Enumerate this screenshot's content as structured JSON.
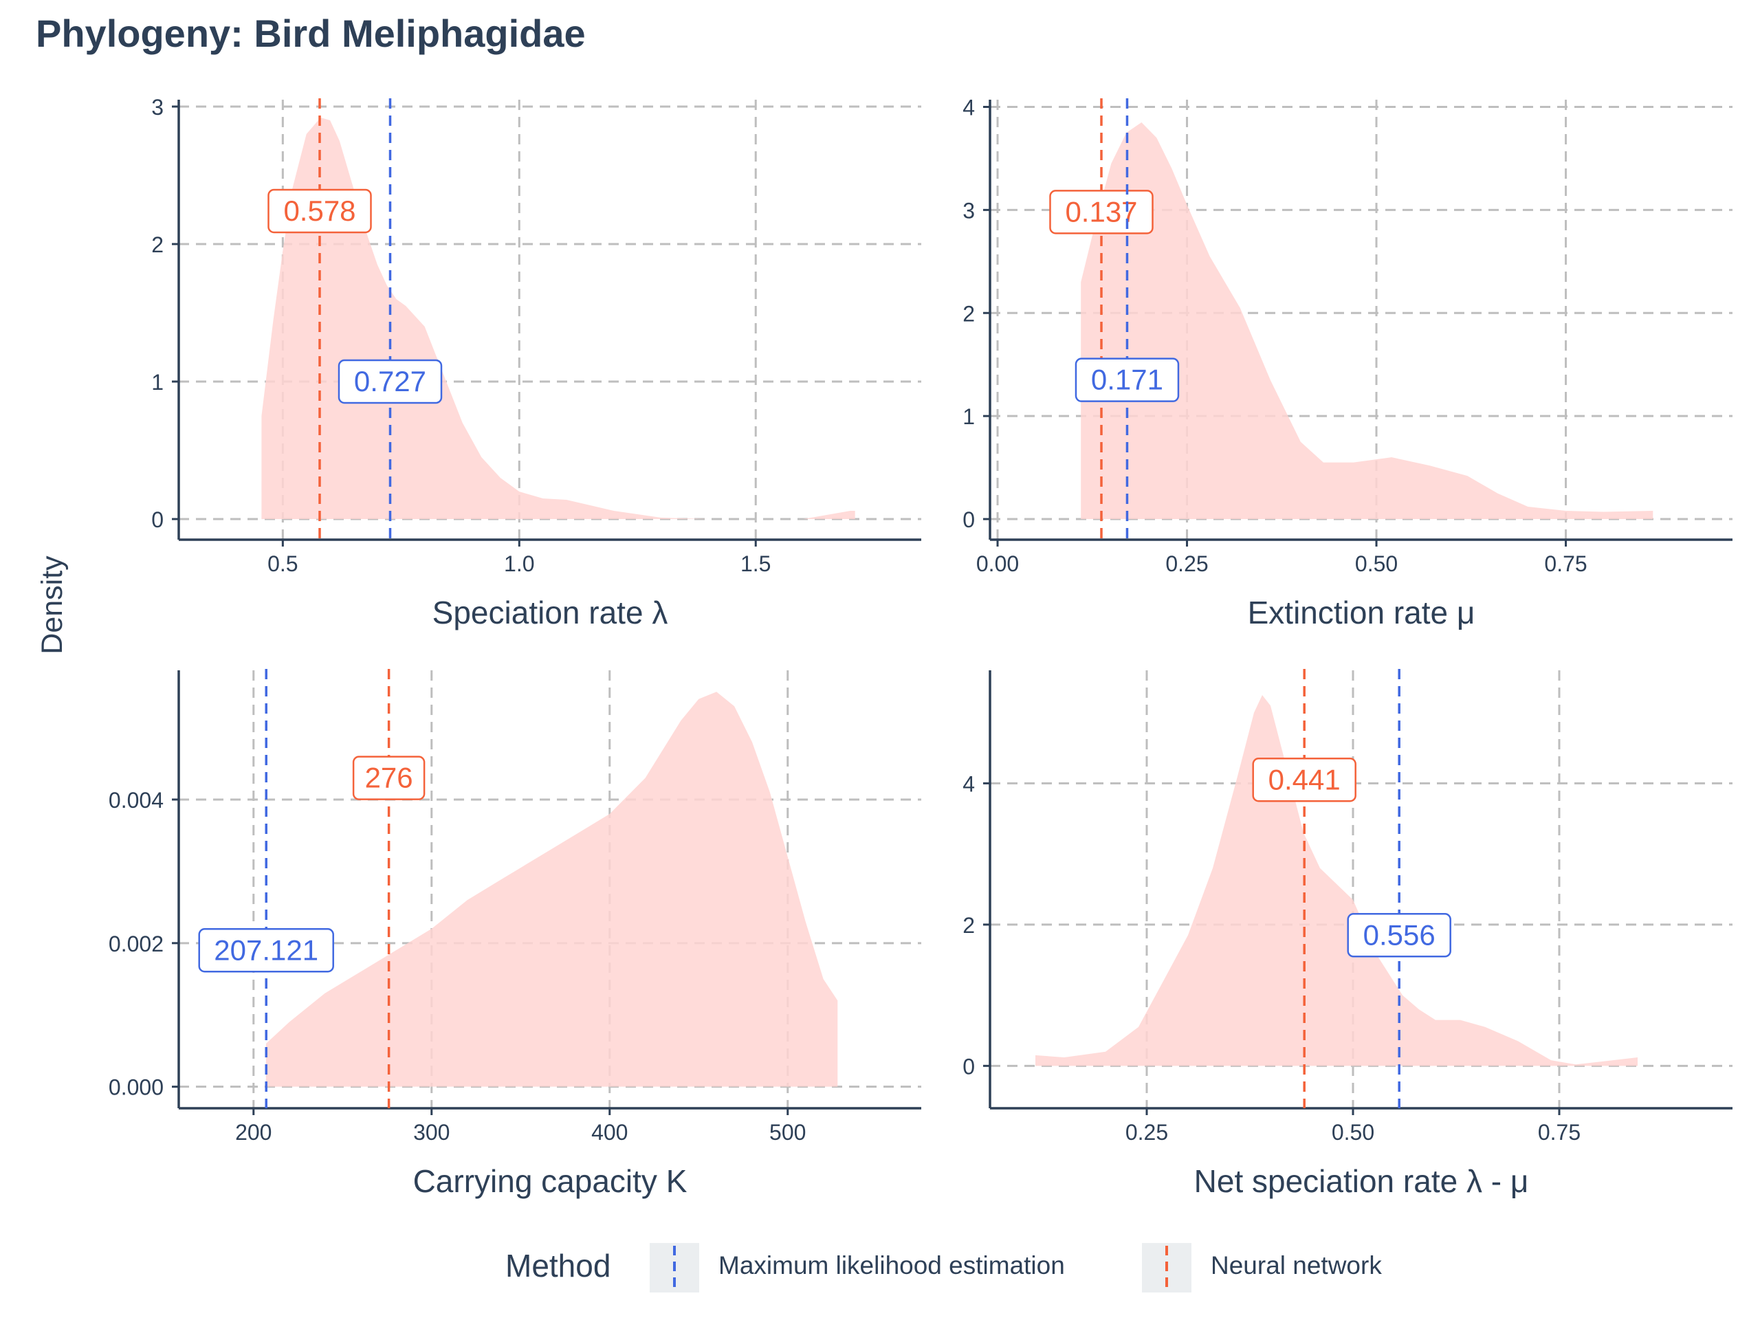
{
  "title": "Phylogeny: Bird Meliphagidae",
  "ylabel": "Density",
  "legend": {
    "title": "Method",
    "position": "bottom",
    "entries": [
      {
        "label": "Maximum likelihood estimation",
        "color": "#4169E1"
      },
      {
        "label": "Neural network",
        "color": "#F4623A"
      }
    ]
  },
  "colors": {
    "mle": "#4169E1",
    "nn": "#F4623A",
    "fill": "#FFD5D2",
    "text": "#2E4057",
    "grid": "#BEBEBE"
  },
  "chart_data": [
    {
      "type": "area",
      "xlabel": "Speciation rate λ",
      "xlim": [
        0.28,
        1.85
      ],
      "ylim": [
        -0.15,
        3.05
      ],
      "xticks": [
        0.5,
        1.0,
        1.5
      ],
      "xtick_labels": [
        "0.5",
        "1.0",
        "1.5"
      ],
      "yticks": [
        0,
        1,
        2,
        3
      ],
      "ytick_labels": [
        "0",
        "1",
        "2",
        "3"
      ],
      "density_x": [
        0.455,
        0.48,
        0.5,
        0.52,
        0.55,
        0.58,
        0.6,
        0.62,
        0.65,
        0.68,
        0.7,
        0.72,
        0.74,
        0.76,
        0.8,
        0.84,
        0.88,
        0.92,
        0.96,
        1.0,
        1.05,
        1.1,
        1.15,
        1.2,
        1.3,
        1.4,
        1.5,
        1.6,
        1.65,
        1.7,
        1.71
      ],
      "density_y": [
        0.75,
        1.45,
        1.95,
        2.4,
        2.8,
        2.92,
        2.9,
        2.75,
        2.4,
        2.05,
        1.85,
        1.7,
        1.6,
        1.55,
        1.4,
        1.05,
        0.7,
        0.45,
        0.3,
        0.2,
        0.15,
        0.14,
        0.1,
        0.06,
        0.01,
        0.0,
        0.0,
        0.0,
        0.03,
        0.06,
        0.06
      ],
      "mle": {
        "value": 0.727,
        "label": "0.727",
        "label_y": 1.0
      },
      "nn": {
        "value": 0.578,
        "label": "0.578",
        "label_y": 2.24
      }
    },
    {
      "type": "area",
      "xlabel": "Extinction rate μ",
      "xlim": [
        -0.01,
        0.97
      ],
      "ylim": [
        -0.2,
        4.07
      ],
      "xticks": [
        0.0,
        0.25,
        0.5,
        0.75
      ],
      "xtick_labels": [
        "0.00",
        "0.25",
        "0.50",
        "0.75"
      ],
      "yticks": [
        0,
        1,
        2,
        3,
        4
      ],
      "ytick_labels": [
        "0",
        "1",
        "2",
        "3",
        "4"
      ],
      "density_x": [
        0.11,
        0.11,
        0.13,
        0.15,
        0.17,
        0.19,
        0.21,
        0.23,
        0.25,
        0.28,
        0.32,
        0.36,
        0.4,
        0.43,
        0.47,
        0.52,
        0.57,
        0.62,
        0.66,
        0.7,
        0.75,
        0.8,
        0.865
      ],
      "density_y": [
        0.0,
        2.3,
        2.9,
        3.45,
        3.75,
        3.85,
        3.7,
        3.4,
        3.05,
        2.55,
        2.05,
        1.35,
        0.75,
        0.55,
        0.55,
        0.6,
        0.52,
        0.42,
        0.25,
        0.12,
        0.08,
        0.07,
        0.08
      ],
      "mle": {
        "value": 0.171,
        "label": "0.171",
        "label_y": 1.35
      },
      "nn": {
        "value": 0.137,
        "label": "0.137",
        "label_y": 2.98
      }
    },
    {
      "type": "area",
      "xlabel": "Carrying capacity K",
      "xlim": [
        158,
        575
      ],
      "ylim": [
        -0.0003,
        0.0058
      ],
      "xticks": [
        200,
        300,
        400,
        500
      ],
      "xtick_labels": [
        "200",
        "300",
        "400",
        "500"
      ],
      "yticks": [
        0,
        0.002,
        0.004
      ],
      "ytick_labels": [
        "0.000",
        "0.002",
        "0.004"
      ],
      "density_x": [
        207,
        220,
        240,
        260,
        280,
        300,
        320,
        340,
        360,
        380,
        400,
        420,
        440,
        450,
        460,
        470,
        480,
        490,
        500,
        510,
        520,
        528,
        528
      ],
      "density_y": [
        0.0006,
        0.0009,
        0.0013,
        0.0016,
        0.0019,
        0.0022,
        0.0026,
        0.0029,
        0.0032,
        0.0035,
        0.0038,
        0.0043,
        0.0051,
        0.0054,
        0.0055,
        0.0053,
        0.0048,
        0.0041,
        0.0032,
        0.0023,
        0.0015,
        0.0012,
        0.0
      ],
      "mle": {
        "value": 207.121,
        "label": "207.121",
        "label_y": 0.0019
      },
      "nn": {
        "value": 276,
        "label": "276",
        "label_y": 0.0043
      }
    },
    {
      "type": "area",
      "xlabel": "Net speciation rate λ - μ",
      "xlim": [
        0.06,
        0.96
      ],
      "ylim": [
        -0.6,
        5.6
      ],
      "xticks": [
        0.25,
        0.5,
        0.75
      ],
      "xtick_labels": [
        "0.25",
        "0.50",
        "0.75"
      ],
      "yticks": [
        0,
        2,
        4
      ],
      "ytick_labels": [
        "0",
        "2",
        "4"
      ],
      "density_x": [
        0.115,
        0.15,
        0.2,
        0.24,
        0.27,
        0.3,
        0.33,
        0.36,
        0.38,
        0.39,
        0.4,
        0.42,
        0.44,
        0.46,
        0.5,
        0.53,
        0.56,
        0.58,
        0.6,
        0.63,
        0.66,
        0.7,
        0.74,
        0.77,
        0.8,
        0.845
      ],
      "density_y": [
        0.15,
        0.12,
        0.2,
        0.55,
        1.2,
        1.85,
        2.8,
        4.1,
        5.0,
        5.25,
        5.1,
        4.2,
        3.3,
        2.8,
        2.35,
        1.55,
        1.0,
        0.8,
        0.65,
        0.65,
        0.55,
        0.35,
        0.08,
        0.02,
        0.06,
        0.12
      ],
      "mle": {
        "value": 0.556,
        "label": "0.556",
        "label_y": 1.85
      },
      "nn": {
        "value": 0.441,
        "label": "0.441",
        "label_y": 4.05
      }
    }
  ]
}
